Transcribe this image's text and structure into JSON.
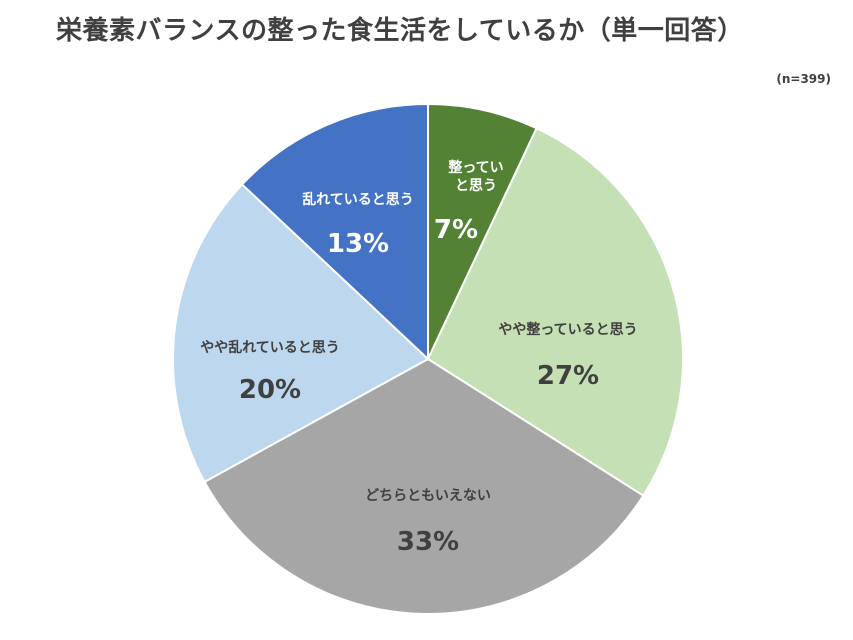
{
  "title": "栄養素バランスの整った食生活をしているか（単一回答）",
  "sample_size": "(n=399)",
  "chart_data": {
    "type": "pie",
    "title": "栄養素バランスの整った食生活をしているか（単一回答）",
    "categories": [
      "整っていると思う",
      "やや整っていると思う",
      "どちらともいえない",
      "やや乱れていると思う",
      "乱れていると思う"
    ],
    "values": [
      7,
      27,
      33,
      20,
      13
    ],
    "value_labels": [
      "7%",
      "27%",
      "33%",
      "20%",
      "13%"
    ],
    "label_lines": [
      [
        "整ってい",
        "と思う"
      ],
      [
        "やや整っていると思う"
      ],
      [
        "どちらともいえない"
      ],
      [
        "やや乱れていると思う"
      ],
      [
        "乱れていると思う"
      ]
    ],
    "colors": [
      "#548235",
      "#c5e0b4",
      "#a6a6a6",
      "#bdd7ee",
      "#4472c4"
    ],
    "label_colors": [
      "#ffffff",
      "#404040",
      "#404040",
      "#404040",
      "#ffffff"
    ],
    "start": "top",
    "direction": "clockwise"
  }
}
